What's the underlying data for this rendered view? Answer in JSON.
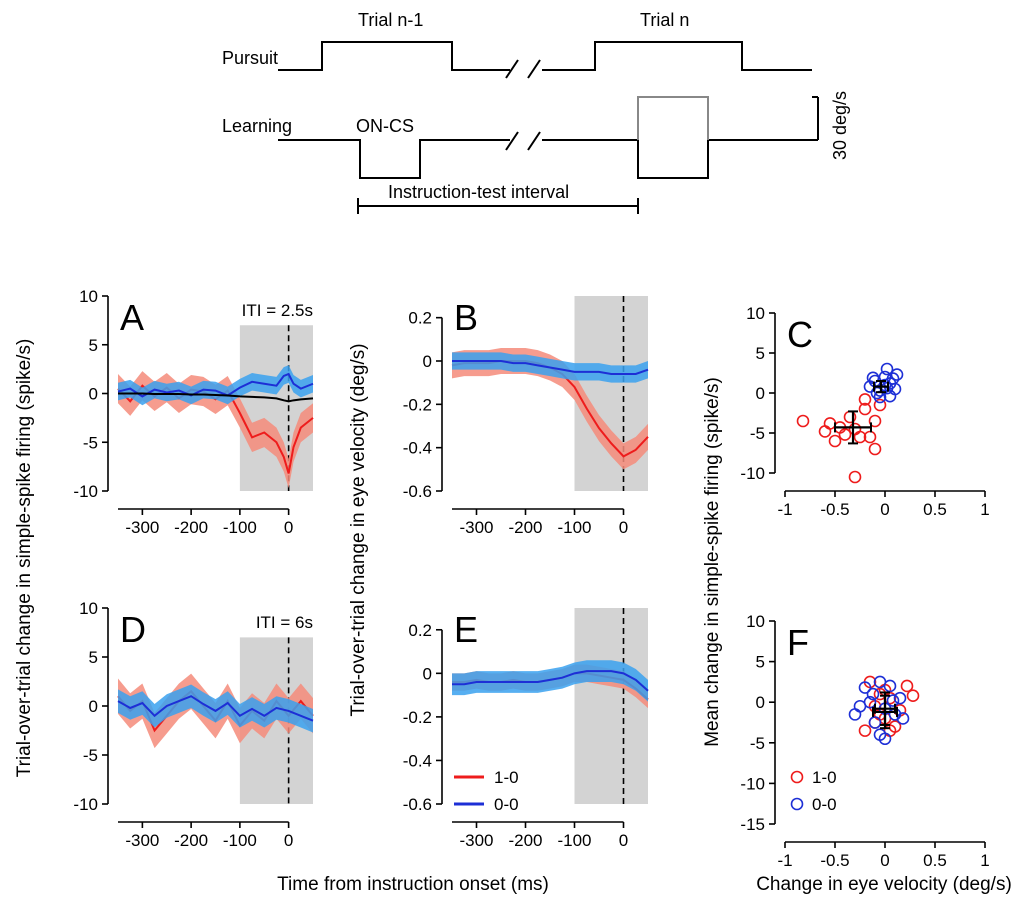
{
  "schematic": {
    "pursuit_label": "Pursuit",
    "learning_label": "Learning",
    "trial_prev": "Trial n-1",
    "trial_curr": "Trial n",
    "oncs": "ON-CS",
    "interval": "Instruction-test interval",
    "scale": "30 deg/s"
  },
  "labels": {
    "xlabel_time": "Time from instruction onset (ms)",
    "xlabel_velocity": "Change in eye velocity (deg/s)",
    "ylabel_firing": "Trial-over-trial change in simple-spike firing (spike/s)",
    "ylabel_eye": "Trial-over-trial change in eye velocity (deg/s)",
    "ylabel_mean": "Mean change in simple-spike firing (spike/s)"
  },
  "legend": [
    {
      "label": "1-0",
      "color": "#ee1c1c"
    },
    {
      "label": "0-0",
      "color": "#1d2fd6"
    }
  ],
  "chart_data": [
    {
      "panel": "A",
      "type": "line",
      "annotation": "ITI = 2.5s",
      "xlim": [
        -350,
        50
      ],
      "ylim": [
        -10,
        10
      ],
      "xticks": [
        -300,
        -200,
        -100,
        0
      ],
      "yticks": [
        -10,
        -5,
        0,
        5,
        10
      ],
      "shaded": [
        -100,
        50
      ],
      "vline": 0,
      "x": [
        -350,
        -325,
        -300,
        -275,
        -250,
        -225,
        -200,
        -175,
        -150,
        -125,
        -100,
        -75,
        -50,
        -25,
        -10,
        0,
        10,
        25,
        50
      ],
      "series": [
        {
          "name": "1-0",
          "values": [
            0.5,
            -0.8,
            0.8,
            -0.3,
            0.6,
            -0.5,
            0.4,
            0.2,
            -0.6,
            0.3,
            -2.0,
            -4.5,
            -4.0,
            -5.0,
            -6.5,
            -8.2,
            -5.5,
            -3.5,
            -2.5
          ],
          "sem": 1.5
        },
        {
          "name": "0-0",
          "values": [
            0.2,
            0.5,
            -0.3,
            0.4,
            0.1,
            0.3,
            -0.2,
            0.4,
            0.3,
            -0.2,
            0.6,
            1.2,
            1.0,
            0.8,
            1.8,
            2.0,
            1.0,
            0.5,
            1.0
          ],
          "sem": 0.9
        },
        {
          "name": "mean",
          "values": [
            0,
            0,
            0,
            -0.05,
            -0.05,
            -0.05,
            -0.1,
            -0.1,
            -0.15,
            -0.2,
            -0.3,
            -0.35,
            -0.4,
            -0.5,
            -0.7,
            -0.8,
            -0.7,
            -0.6,
            -0.5
          ]
        }
      ]
    },
    {
      "panel": "B",
      "type": "line",
      "xlim": [
        -350,
        50
      ],
      "ylim": [
        -0.6,
        0.3
      ],
      "xticks": [
        -300,
        -200,
        -100,
        0
      ],
      "yticks": [
        -0.6,
        -0.4,
        -0.2,
        0,
        0.2
      ],
      "shaded": [
        -100,
        50
      ],
      "vline": 0,
      "x": [
        -350,
        -325,
        -300,
        -275,
        -250,
        -225,
        -200,
        -175,
        -150,
        -125,
        -100,
        -75,
        -50,
        -25,
        0,
        25,
        50
      ],
      "series": [
        {
          "name": "1-0",
          "values": [
            -0.02,
            -0.01,
            -0.01,
            -0.01,
            0,
            0,
            0,
            -0.01,
            -0.03,
            -0.06,
            -0.12,
            -0.22,
            -0.31,
            -0.38,
            -0.44,
            -0.41,
            -0.35
          ],
          "sem": 0.06
        },
        {
          "name": "0-0",
          "values": [
            0,
            0,
            0,
            0,
            0,
            -0.01,
            -0.01,
            -0.02,
            -0.03,
            -0.04,
            -0.05,
            -0.05,
            -0.05,
            -0.06,
            -0.06,
            -0.06,
            -0.04
          ],
          "sem": 0.04
        }
      ]
    },
    {
      "panel": "C",
      "type": "scatter",
      "xlim": [
        -1,
        1
      ],
      "ylim": [
        -10,
        10
      ],
      "xticks": [
        -1,
        -0.5,
        0,
        0.5,
        1
      ],
      "yticks": [
        -10,
        -5,
        0,
        5,
        10
      ],
      "series": [
        {
          "name": "1-0",
          "points": [
            [
              -0.82,
              -3.5
            ],
            [
              -0.6,
              -4.8
            ],
            [
              -0.55,
              -3.8
            ],
            [
              -0.5,
              -6.0
            ],
            [
              -0.45,
              -4.3
            ],
            [
              -0.4,
              -5.2
            ],
            [
              -0.35,
              -3.0
            ],
            [
              -0.3,
              -10.5
            ],
            [
              -0.3,
              -4.5
            ],
            [
              -0.25,
              -5.5
            ],
            [
              -0.2,
              -2.0
            ],
            [
              -0.15,
              -5.5
            ],
            [
              -0.1,
              -7.0
            ],
            [
              -0.05,
              -1.5
            ],
            [
              -0.1,
              -3.5
            ],
            [
              -0.2,
              -0.8
            ]
          ],
          "mean": [
            -0.32,
            -4.3
          ],
          "err": [
            0.18,
            2.0
          ]
        },
        {
          "name": "0-0",
          "points": [
            [
              -0.15,
              0.8
            ],
            [
              -0.1,
              1.5
            ],
            [
              -0.05,
              0.3
            ],
            [
              0,
              2.0
            ],
            [
              0.02,
              3.0
            ],
            [
              0.05,
              1.2
            ],
            [
              -0.08,
              0.0
            ],
            [
              0.1,
              0.5
            ],
            [
              0.12,
              2.3
            ],
            [
              0.05,
              -0.4
            ],
            [
              -0.05,
              -0.5
            ],
            [
              0,
              1.0
            ],
            [
              0.08,
              1.8
            ],
            [
              -0.12,
              1.9
            ],
            [
              0.02,
              0.6
            ]
          ],
          "mean": [
            -0.04,
            0.8
          ],
          "err": [
            0.07,
            0.7
          ]
        }
      ]
    },
    {
      "panel": "D",
      "type": "line",
      "annotation": "ITI = 6s",
      "xlim": [
        -350,
        50
      ],
      "ylim": [
        -10,
        10
      ],
      "xticks": [
        -300,
        -200,
        -100,
        0
      ],
      "yticks": [
        -10,
        -5,
        0,
        5,
        10
      ],
      "shaded": [
        -100,
        50
      ],
      "vline": 0,
      "x": [
        -350,
        -325,
        -300,
        -275,
        -250,
        -225,
        -200,
        -175,
        -150,
        -125,
        -100,
        -75,
        -50,
        -25,
        0,
        25,
        50
      ],
      "series": [
        {
          "name": "1-0",
          "values": [
            1.0,
            -0.5,
            0.5,
            -2.5,
            -1.0,
            0.5,
            1.5,
            0.0,
            -1.5,
            0.5,
            -2.0,
            -0.5,
            -1.5,
            0.5,
            -1.0,
            0.5,
            -1.0
          ],
          "sem": 1.8
        },
        {
          "name": "0-0",
          "values": [
            0.5,
            -0.2,
            0.3,
            -1.0,
            0.0,
            0.5,
            1.0,
            0.2,
            -0.5,
            0.3,
            -1.0,
            -0.3,
            -1.0,
            -0.2,
            -0.5,
            -1.0,
            -1.5
          ],
          "sem": 1.2
        }
      ]
    },
    {
      "panel": "E",
      "type": "line",
      "xlim": [
        -350,
        50
      ],
      "ylim": [
        -0.6,
        0.3
      ],
      "xticks": [
        -300,
        -200,
        -100,
        0
      ],
      "yticks": [
        -0.6,
        -0.4,
        -0.2,
        0,
        0.2
      ],
      "shaded": [
        -100,
        50
      ],
      "vline": 0,
      "x": [
        -350,
        -325,
        -300,
        -275,
        -250,
        -225,
        -200,
        -175,
        -150,
        -125,
        -100,
        -75,
        -50,
        -25,
        0,
        25,
        50
      ],
      "series": [
        {
          "name": "1-0",
          "values": [
            -0.04,
            -0.04,
            -0.03,
            -0.04,
            -0.04,
            -0.03,
            -0.04,
            -0.04,
            -0.03,
            -0.02,
            0.0,
            0.0,
            -0.01,
            -0.02,
            -0.03,
            -0.07,
            -0.12
          ],
          "sem": 0.04
        },
        {
          "name": "0-0",
          "values": [
            -0.05,
            -0.05,
            -0.04,
            -0.04,
            -0.04,
            -0.04,
            -0.04,
            -0.04,
            -0.03,
            -0.02,
            0.0,
            0.01,
            0.01,
            0.01,
            0.0,
            -0.03,
            -0.08
          ],
          "sem": 0.05
        }
      ]
    },
    {
      "panel": "F",
      "type": "scatter",
      "xlim": [
        -1,
        1
      ],
      "ylim": [
        -15,
        10
      ],
      "xticks": [
        -1,
        -0.5,
        0,
        0.5,
        1
      ],
      "yticks": [
        -15,
        -10,
        -5,
        0,
        5,
        10
      ],
      "series": [
        {
          "name": "1-0",
          "points": [
            [
              -0.2,
              -3.5
            ],
            [
              -0.15,
              2.5
            ],
            [
              -0.1,
              -0.5
            ],
            [
              -0.05,
              1.0
            ],
            [
              0,
              -2.0
            ],
            [
              0.05,
              0.5
            ],
            [
              0.1,
              -3.0
            ],
            [
              0.15,
              -1.0
            ],
            [
              0.22,
              2.0
            ],
            [
              0.28,
              0.8
            ],
            [
              -0.1,
              -2.5
            ],
            [
              0,
              1.5
            ],
            [
              0.05,
              -3.5
            ],
            [
              -0.05,
              -1.5
            ]
          ],
          "mean": [
            0.0,
            -1.2
          ],
          "err": [
            0.12,
            2.0
          ]
        },
        {
          "name": "0-0",
          "points": [
            [
              -0.3,
              -1.5
            ],
            [
              -0.25,
              -0.5
            ],
            [
              -0.2,
              1.8
            ],
            [
              -0.15,
              0.0
            ],
            [
              -0.1,
              -2.5
            ],
            [
              -0.05,
              2.5
            ],
            [
              0,
              -0.8
            ],
            [
              0.05,
              2.0
            ],
            [
              0.1,
              -1.5
            ],
            [
              0.15,
              0.5
            ],
            [
              0.18,
              -2.0
            ],
            [
              -0.05,
              -4.0
            ],
            [
              0,
              -4.5
            ],
            [
              0.08,
              0.2
            ],
            [
              -0.12,
              1.0
            ]
          ],
          "mean": [
            0.0,
            -0.8
          ],
          "err": [
            0.1,
            2.0
          ]
        }
      ]
    }
  ]
}
